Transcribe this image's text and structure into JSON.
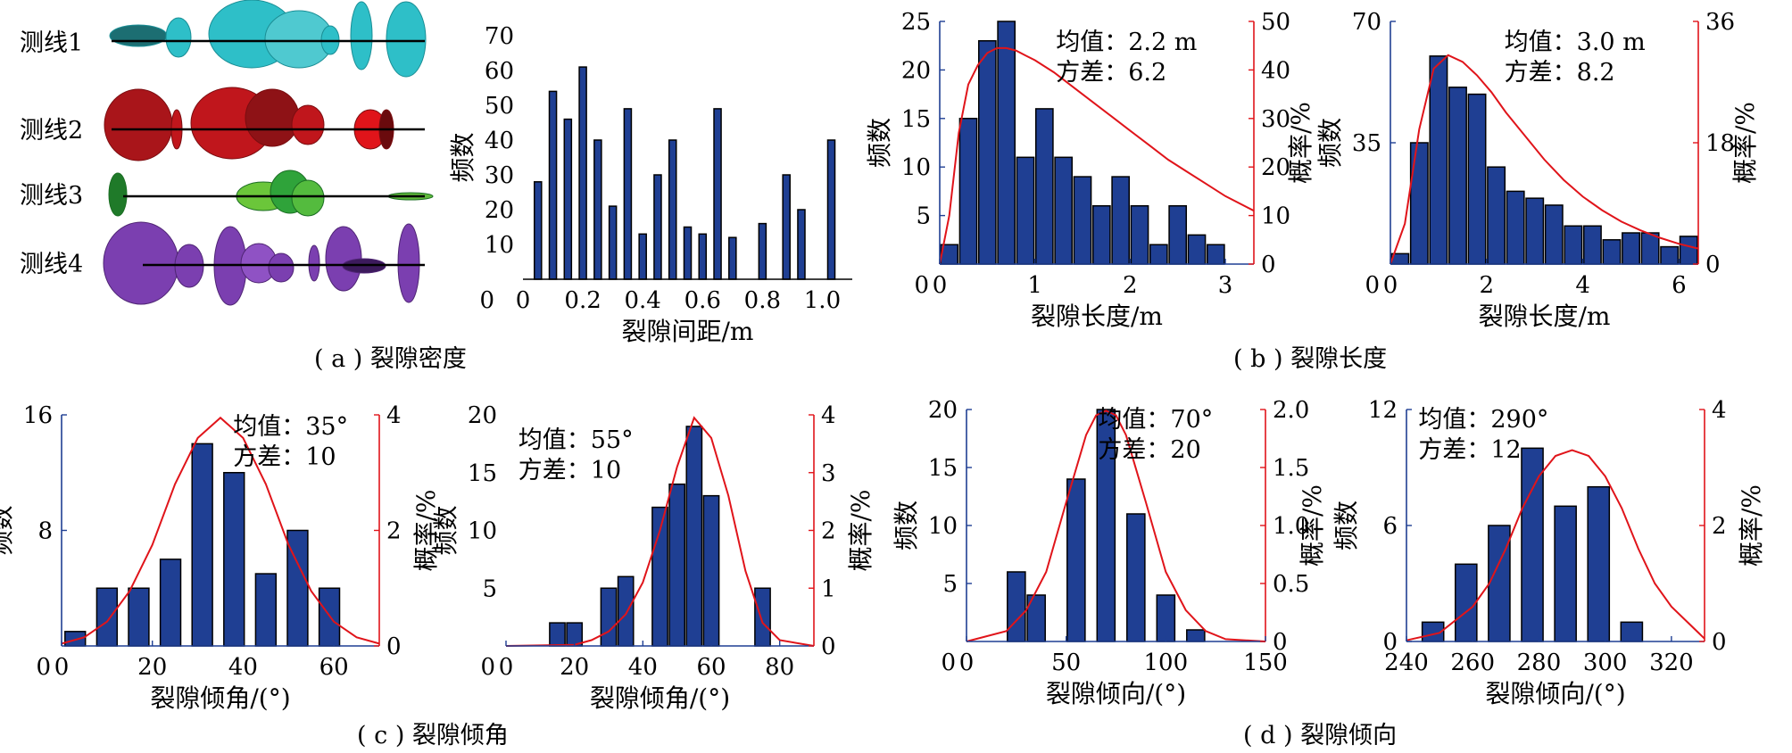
{
  "measurement_lines": {
    "labels": [
      "测线1",
      "测线2",
      "测线3",
      "测线4"
    ],
    "colors": [
      "#2ebfc8",
      "#c0161c",
      "#2fa33a",
      "#7b3fb0"
    ]
  },
  "captions": {
    "a": "( a ) 裂隙密度",
    "b": "( b ) 裂隙长度",
    "c": "( c ) 裂隙倾角",
    "d": "( d ) 裂隙倾向"
  },
  "colors": {
    "bar": "#1f3f93",
    "bar_edge": "#000000",
    "curve": "#e0141a",
    "axis_left": "#1f3f93",
    "axis_right": "#e0141a"
  },
  "chart_data": [
    {
      "id": "spacing",
      "type": "bar",
      "xlabel": "裂隙间距/m",
      "ylabel": "频数",
      "xlim": [
        0,
        1.1
      ],
      "ylim": [
        0,
        70
      ],
      "xticks": [
        "0",
        "0.2",
        "0.4",
        "0.6",
        "0.8",
        "1.0"
      ],
      "xtick_values": [
        0,
        0.2,
        0.4,
        0.6,
        0.8,
        1.0
      ],
      "yticks": [
        "10",
        "20",
        "30",
        "40",
        "50",
        "60",
        "70"
      ],
      "ytick_values": [
        10,
        20,
        30,
        40,
        50,
        60,
        70
      ],
      "bar_width": 0.024,
      "x": [
        0.05,
        0.1,
        0.15,
        0.2,
        0.25,
        0.3,
        0.35,
        0.4,
        0.45,
        0.5,
        0.55,
        0.6,
        0.65,
        0.7,
        0.8,
        0.88,
        0.93,
        1.03
      ],
      "values": [
        28,
        54,
        46,
        61,
        40,
        21,
        49,
        13,
        30,
        40,
        15,
        13,
        49,
        12,
        16,
        30,
        20,
        40
      ]
    },
    {
      "id": "length1",
      "type": "bar",
      "xlabel": "裂隙长度/m",
      "ylabel": "频数",
      "ylabel_right": "概率/%",
      "annotation": [
        "均值：2.2 m",
        "方差：6.2"
      ],
      "xlim": [
        0,
        3.3
      ],
      "ylim": [
        0,
        25
      ],
      "ylim_right": [
        0,
        50
      ],
      "xticks": [
        "0",
        "1",
        "2",
        "3"
      ],
      "xtick_values": [
        0,
        1,
        2,
        3
      ],
      "yticks": [
        "5",
        "10",
        "15",
        "20",
        "25"
      ],
      "ytick_values": [
        5,
        10,
        15,
        20,
        25
      ],
      "yticks_right": [
        "0",
        "10",
        "20",
        "30",
        "40",
        "50"
      ],
      "ytick_right_values": [
        0,
        10,
        20,
        30,
        40,
        50
      ],
      "bar_width": 0.18,
      "x": [
        0.1,
        0.3,
        0.5,
        0.7,
        0.9,
        1.1,
        1.3,
        1.5,
        1.7,
        1.9,
        2.1,
        2.3,
        2.5,
        2.7,
        2.9
      ],
      "values": [
        2,
        15,
        23,
        25,
        11,
        16,
        11,
        9,
        6,
        9,
        6,
        2,
        6,
        3,
        2
      ],
      "curve": {
        "x": [
          0.0,
          0.1,
          0.2,
          0.3,
          0.4,
          0.5,
          0.6,
          0.7,
          0.8,
          0.9,
          1.0,
          1.2,
          1.4,
          1.6,
          1.8,
          2.0,
          2.2,
          2.4,
          2.6,
          2.8,
          3.0,
          3.3
        ],
        "y": [
          0,
          10,
          27,
          37,
          41,
          43.5,
          44.5,
          44.5,
          44,
          43,
          42,
          39.5,
          36.5,
          33.5,
          30.5,
          27.5,
          24.5,
          21.5,
          19,
          16.5,
          14,
          11
        ]
      }
    },
    {
      "id": "length2",
      "type": "bar",
      "xlabel": "裂隙长度/m",
      "ylabel": "频数",
      "ylabel_right": "概率/%",
      "annotation": [
        "均值：3.0 m",
        "方差：8.2"
      ],
      "xlim": [
        0,
        6.4
      ],
      "ylim": [
        0,
        70
      ],
      "ylim_right": [
        0,
        36
      ],
      "xticks": [
        "0",
        "2",
        "4",
        "6"
      ],
      "xtick_values": [
        0,
        2,
        4,
        6
      ],
      "yticks": [
        "35",
        "70"
      ],
      "ytick_values": [
        35,
        70
      ],
      "yticks_right": [
        "0",
        "18",
        "36"
      ],
      "ytick_right_values": [
        0,
        18,
        36
      ],
      "bar_width": 0.36,
      "x": [
        0.2,
        0.6,
        1.0,
        1.4,
        1.8,
        2.2,
        2.6,
        3.0,
        3.4,
        3.8,
        4.2,
        4.6,
        5.0,
        5.4,
        5.8,
        6.2
      ],
      "values": [
        3,
        35,
        60,
        51,
        49,
        28,
        21,
        19,
        17,
        11,
        11,
        7,
        9,
        9,
        5,
        8
      ],
      "curve": {
        "x": [
          0.0,
          0.3,
          0.6,
          0.9,
          1.2,
          1.5,
          1.8,
          2.1,
          2.4,
          2.8,
          3.2,
          3.6,
          4.0,
          4.4,
          4.8,
          5.2,
          5.6,
          6.0,
          6.4
        ],
        "y": [
          0,
          6,
          20,
          29,
          31,
          30,
          28,
          25.5,
          22.5,
          19,
          15.5,
          12.5,
          10,
          8,
          6.3,
          5,
          3.9,
          3,
          2.3
        ]
      }
    },
    {
      "id": "dip1",
      "type": "bar",
      "xlabel": "裂隙倾角/(°)",
      "ylabel": "频数",
      "ylabel_right": "概率/%",
      "annotation": [
        "均值：35°",
        "方差：10"
      ],
      "xlim": [
        0,
        70
      ],
      "ylim": [
        0,
        16
      ],
      "ylim_right": [
        0,
        4
      ],
      "xticks": [
        "0",
        "20",
        "40",
        "60"
      ],
      "xtick_values": [
        0,
        20,
        40,
        60
      ],
      "yticks": [
        "8",
        "16"
      ],
      "ytick_values": [
        8,
        16
      ],
      "yticks_right": [
        "0",
        "2",
        "4"
      ],
      "ytick_right_values": [
        0,
        2,
        4
      ],
      "bar_width": 4.5,
      "x": [
        3,
        10,
        17,
        24,
        31,
        38,
        45,
        52,
        59
      ],
      "values": [
        1,
        4,
        4,
        6,
        14,
        12,
        5,
        8,
        4
      ],
      "curve": {
        "x": [
          0,
          5,
          10,
          15,
          20,
          25,
          30,
          35,
          40,
          45,
          50,
          55,
          60,
          65,
          70
        ],
        "y": [
          0.04,
          0.15,
          0.42,
          0.95,
          1.75,
          2.8,
          3.6,
          3.95,
          3.6,
          2.8,
          1.75,
          0.95,
          0.42,
          0.15,
          0.04
        ]
      }
    },
    {
      "id": "dip2",
      "type": "bar",
      "xlabel": "裂隙倾角/(°)",
      "ylabel": "频数",
      "ylabel_right": "概率/%",
      "annotation": [
        "均值：55°",
        "方差：10"
      ],
      "xlim": [
        0,
        90
      ],
      "ylim": [
        0,
        20
      ],
      "ylim_right": [
        0,
        4
      ],
      "xticks": [
        "0",
        "20",
        "40",
        "60",
        "80"
      ],
      "xtick_values": [
        0,
        20,
        40,
        60,
        80
      ],
      "yticks": [
        "5",
        "10",
        "15",
        "20"
      ],
      "ytick_values": [
        5,
        10,
        15,
        20
      ],
      "yticks_right": [
        "0",
        "1",
        "2",
        "3",
        "4"
      ],
      "ytick_right_values": [
        0,
        1,
        2,
        3,
        4
      ],
      "bar_width": 4.5,
      "x": [
        15,
        20,
        30,
        35,
        45,
        50,
        55,
        60,
        65,
        75
      ],
      "values": [
        2,
        2,
        5,
        6,
        12,
        14,
        19,
        13,
        0,
        5
      ],
      "curve": {
        "x": [
          0,
          20,
          25,
          30,
          35,
          40,
          45,
          50,
          55,
          60,
          65,
          70,
          75,
          80,
          90
        ],
        "y": [
          0,
          0.02,
          0.1,
          0.25,
          0.55,
          1.1,
          2.0,
          3.1,
          3.95,
          3.6,
          2.6,
          1.3,
          0.4,
          0.1,
          0
        ]
      }
    },
    {
      "id": "dipdir1",
      "type": "bar",
      "xlabel": "裂隙倾向/(°)",
      "ylabel": "频数",
      "ylabel_right": "概率/%",
      "annotation": [
        "均值：70°",
        "方差：20"
      ],
      "xlim": [
        0,
        150
      ],
      "ylim": [
        0,
        20
      ],
      "ylim_right": [
        0,
        2.0
      ],
      "xticks": [
        "0",
        "50",
        "100",
        "150"
      ],
      "xtick_values": [
        0,
        50,
        100,
        150
      ],
      "yticks": [
        "5",
        "10",
        "15",
        "20"
      ],
      "ytick_values": [
        5,
        10,
        15,
        20
      ],
      "yticks_right": [
        "0",
        "0.5",
        "1.0",
        "1.5",
        "2.0"
      ],
      "ytick_right_values": [
        0,
        0.5,
        1.0,
        1.5,
        2.0
      ],
      "bar_width": 9,
      "x": [
        25,
        35,
        55,
        70,
        85,
        100,
        115
      ],
      "values": [
        6,
        4,
        14,
        20,
        11,
        4,
        1
      ],
      "curve": {
        "x": [
          0,
          20,
          30,
          40,
          50,
          60,
          65,
          70,
          75,
          80,
          90,
          100,
          110,
          120,
          130,
          150
        ],
        "y": [
          0,
          0.09,
          0.27,
          0.6,
          1.2,
          1.78,
          1.95,
          1.99,
          1.95,
          1.78,
          1.2,
          0.6,
          0.27,
          0.09,
          0.02,
          0
        ]
      }
    },
    {
      "id": "dipdir2",
      "type": "bar",
      "xlabel": "裂隙倾向/(°)",
      "ylabel": "频数",
      "ylabel_right": "概率/%",
      "annotation": [
        "均值：290°",
        "方差：12"
      ],
      "xlim": [
        240,
        330
      ],
      "ylim": [
        0,
        12
      ],
      "ylim_right": [
        0,
        4
      ],
      "xticks": [
        "240",
        "260",
        "280",
        "300",
        "320"
      ],
      "xtick_values": [
        240,
        260,
        280,
        300,
        320
      ],
      "yticks": [
        "0",
        "6",
        "12"
      ],
      "ytick_values": [
        0,
        6,
        12
      ],
      "yticks_right": [
        "0",
        "2",
        "4"
      ],
      "ytick_right_values": [
        0,
        2,
        4
      ],
      "bar_width": 6.5,
      "x": [
        248,
        258,
        268,
        278,
        288,
        298,
        308,
        318
      ],
      "values": [
        1,
        4,
        6,
        10,
        7,
        8,
        1,
        0
      ],
      "curve": {
        "x": [
          240,
          250,
          260,
          265,
          270,
          275,
          280,
          285,
          290,
          295,
          300,
          305,
          310,
          315,
          320,
          330
        ],
        "y": [
          0.02,
          0.15,
          0.6,
          1.0,
          1.6,
          2.3,
          2.85,
          3.2,
          3.3,
          3.2,
          2.85,
          2.3,
          1.6,
          1.0,
          0.6,
          0.05
        ]
      }
    }
  ]
}
